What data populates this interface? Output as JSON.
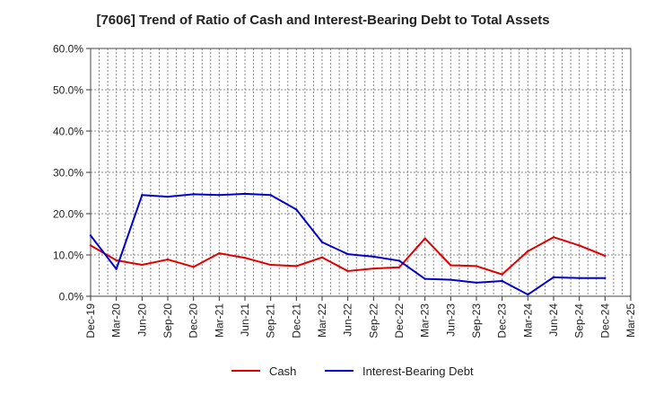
{
  "chart_data": {
    "type": "line",
    "title": "[7606]  Trend of Ratio of Cash and Interest-Bearing Debt to Total Assets",
    "xlabel": "",
    "ylabel": "",
    "ylim": [
      0,
      60
    ],
    "yticks": [
      "0.0%",
      "10.0%",
      "20.0%",
      "30.0%",
      "40.0%",
      "50.0%",
      "60.0%"
    ],
    "grid": true,
    "legend_position": "bottom",
    "categories": [
      "Dec-19",
      "Mar-20",
      "Jun-20",
      "Sep-20",
      "Dec-20",
      "Mar-21",
      "Jun-21",
      "Sep-21",
      "Dec-21",
      "Mar-22",
      "Jun-22",
      "Sep-22",
      "Dec-22",
      "Mar-23",
      "Jun-23",
      "Sep-23",
      "Dec-23",
      "Mar-24",
      "Jun-24",
      "Sep-24",
      "Dec-24",
      "Mar-25"
    ],
    "series": [
      {
        "name": "Cash",
        "color": "#e00000",
        "values": [
          12.3,
          8.7,
          7.6,
          8.9,
          7.1,
          10.4,
          9.3,
          7.6,
          7.3,
          9.4,
          6.1,
          6.7,
          7.0,
          14.0,
          7.5,
          7.3,
          5.3,
          10.9,
          14.3,
          12.3,
          9.8,
          null
        ]
      },
      {
        "name": "Interest-Bearing Debt",
        "color": "#0000cc",
        "values": [
          14.7,
          6.6,
          24.5,
          24.1,
          24.7,
          24.5,
          24.8,
          24.5,
          21.0,
          13.1,
          10.2,
          9.6,
          8.6,
          4.2,
          4.0,
          3.3,
          3.7,
          0.4,
          4.6,
          4.4,
          4.4,
          null
        ]
      }
    ]
  }
}
